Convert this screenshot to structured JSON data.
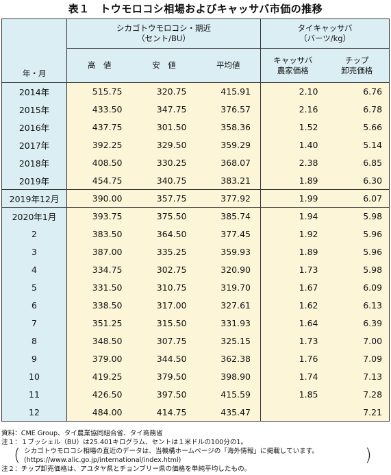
{
  "title": "表１　トウモロコシ相場およびキャッサバ市価の推移",
  "header": {
    "row_label": "年・月",
    "group1": {
      "line1": "シカゴトウモロコシ・期近",
      "line2": "（セント/BU）"
    },
    "group2": {
      "line1": "タイキャッサバ",
      "line2": "（バーツ/kg）"
    },
    "columns": [
      {
        "label": "高　値"
      },
      {
        "label": "安　値"
      },
      {
        "label": "平均値"
      },
      {
        "line1": "キャッサバ",
        "line2": "農家価格"
      },
      {
        "line1": "チップ",
        "line2": "卸売価格"
      }
    ]
  },
  "rows": [
    {
      "label": "2014年",
      "values": [
        "515.75",
        "320.75",
        "415.91",
        "2.10",
        "6.76"
      ]
    },
    {
      "label": "2015年",
      "values": [
        "433.50",
        "347.75",
        "376.57",
        "2.16",
        "6.78"
      ]
    },
    {
      "label": "2016年",
      "values": [
        "437.75",
        "301.50",
        "358.36",
        "1.52",
        "5.66"
      ]
    },
    {
      "label": "2017年",
      "values": [
        "392.25",
        "329.50",
        "359.29",
        "1.40",
        "5.14"
      ]
    },
    {
      "label": "2018年",
      "values": [
        "408.50",
        "330.25",
        "368.07",
        "2.38",
        "6.85"
      ]
    },
    {
      "label": "2019年",
      "values": [
        "454.75",
        "340.75",
        "383.21",
        "1.89",
        "6.30"
      ]
    },
    {
      "label": "2019年12月",
      "values": [
        "390.00",
        "357.75",
        "377.92",
        "1.99",
        "6.07"
      ]
    },
    {
      "label": "2020年1月",
      "values": [
        "393.75",
        "375.50",
        "385.74",
        "1.94",
        "5.98"
      ]
    },
    {
      "label": "2",
      "values": [
        "383.50",
        "364.50",
        "377.45",
        "1.92",
        "5.96"
      ]
    },
    {
      "label": "3",
      "values": [
        "387.00",
        "335.25",
        "359.93",
        "1.89",
        "5.96"
      ]
    },
    {
      "label": "4",
      "values": [
        "334.75",
        "302.75",
        "320.90",
        "1.73",
        "5.98"
      ]
    },
    {
      "label": "5",
      "values": [
        "331.50",
        "310.75",
        "319.70",
        "1.67",
        "6.09"
      ]
    },
    {
      "label": "6",
      "values": [
        "338.50",
        "317.00",
        "327.61",
        "1.62",
        "6.13"
      ]
    },
    {
      "label": "7",
      "values": [
        "351.25",
        "315.50",
        "331.93",
        "1.64",
        "6.39"
      ]
    },
    {
      "label": "8",
      "values": [
        "348.50",
        "307.75",
        "325.15",
        "1.73",
        "7.00"
      ]
    },
    {
      "label": "9",
      "values": [
        "379.00",
        "344.50",
        "362.38",
        "1.76",
        "7.09"
      ]
    },
    {
      "label": "10",
      "values": [
        "419.25",
        "379.50",
        "398.90",
        "1.74",
        "7.13"
      ]
    },
    {
      "label": "11",
      "values": [
        "426.50",
        "397.50",
        "415.59",
        "1.85",
        "7.28"
      ]
    },
    {
      "label": "12",
      "values": [
        "484.00",
        "414.75",
        "435.47",
        "",
        "7.21"
      ]
    }
  ],
  "notes": {
    "source": "資料：CME Group、タイ農業協同組合省、タイ商務省",
    "note1": "注１：１ブッシェル（BU）は25.401キログラム、セントは１米ドルの100分の1。",
    "paren_line1": "シカゴトウモロコシ相場の直近のデータは、当機構ホームページの「海外情報」に掲載しています。",
    "paren_line2": "(https://www.alic.go.jp/international/index.html)",
    "note2": "注２：チップ卸売価格は、アユタヤ県とチョンブリー県の価格を単純平均したもの。"
  }
}
